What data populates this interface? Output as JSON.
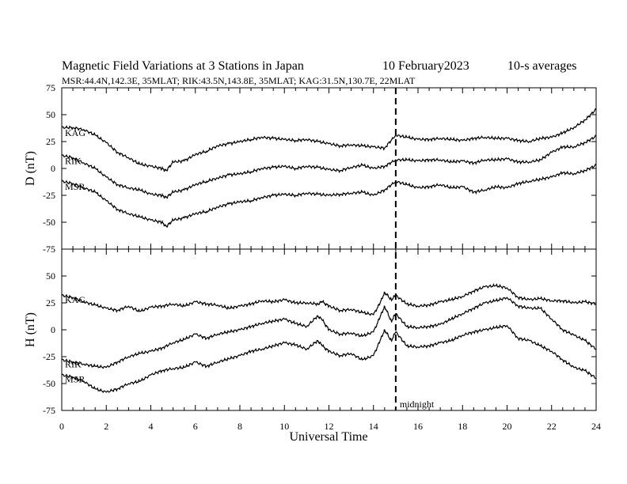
{
  "header": {
    "title": "Magnetic Field Variations at 3 Stations in Japan",
    "date": "10 February2023",
    "averaging": "10-s averages",
    "stations_line": "MSR:44.4N,142.3E, 35MLAT;  RIK:43.5N,143.8E, 35MLAT;  KAG:31.5N,130.7E, 22MLAT"
  },
  "annotation": {
    "midnight_label": "midnight",
    "midnight_hour": 15
  },
  "chart_data": [
    {
      "type": "line",
      "panel": "D",
      "ylabel": "D (nT)",
      "xlabel": "",
      "xlim": [
        0,
        24
      ],
      "ylim": [
        -75,
        75
      ],
      "yticks": [
        75,
        50,
        25,
        0,
        -25,
        -50,
        -75
      ],
      "ytick_labels": [
        "75",
        "50",
        "25",
        "0",
        "-25",
        "-50",
        "-75"
      ],
      "grid": false,
      "series": [
        {
          "name": "KAG",
          "x": [
            0,
            0.5,
            1,
            1.5,
            2,
            2.5,
            3,
            3.5,
            4,
            4.5,
            4.7,
            5,
            5.5,
            6,
            6.5,
            7,
            7.5,
            8,
            8.5,
            9,
            9.5,
            10,
            10.5,
            11,
            11.5,
            12,
            12.5,
            13,
            13.5,
            14,
            14.5,
            15,
            15.5,
            16,
            16.5,
            17,
            17.5,
            18,
            18.5,
            19,
            19.5,
            20,
            20.5,
            21,
            21.5,
            22,
            22.5,
            23,
            23.5,
            24
          ],
          "y": [
            38,
            38,
            36,
            31,
            24,
            15,
            10,
            4,
            2,
            0,
            -2,
            6,
            7,
            13,
            16,
            21,
            23,
            25,
            27,
            29,
            28,
            27,
            26,
            27,
            25,
            23,
            21,
            22,
            21,
            20,
            19,
            31,
            29,
            27,
            27,
            28,
            27,
            26,
            28,
            29,
            28,
            28,
            26,
            25,
            28,
            29,
            33,
            38,
            45,
            55
          ]
        },
        {
          "name": "RIK",
          "x": [
            0,
            0.5,
            1,
            1.5,
            2,
            2.5,
            3,
            3.5,
            4,
            4.5,
            4.7,
            5,
            5.5,
            6,
            6.5,
            7,
            7.5,
            8,
            8.5,
            9,
            9.5,
            10,
            10.5,
            11,
            11.5,
            12,
            12.5,
            13,
            13.5,
            14,
            14.5,
            15,
            15.5,
            16,
            16.5,
            17,
            17.5,
            18,
            18.5,
            19,
            19.5,
            20,
            20.5,
            21,
            21.5,
            22,
            22.5,
            23,
            23.5,
            24
          ],
          "y": [
            12,
            10,
            5,
            0,
            -8,
            -15,
            -18,
            -20,
            -24,
            -25,
            -27,
            -22,
            -20,
            -15,
            -12,
            -9,
            -6,
            -5,
            -3,
            0,
            1,
            2,
            0,
            2,
            1,
            -1,
            -2,
            1,
            3,
            0,
            2,
            8,
            8,
            7,
            8,
            8,
            6,
            7,
            5,
            8,
            8,
            9,
            6,
            6,
            8,
            15,
            20,
            20,
            24,
            30
          ]
        },
        {
          "name": "MSR",
          "x": [
            0,
            0.5,
            1,
            1.5,
            2,
            2.5,
            3,
            3.5,
            4,
            4.5,
            4.7,
            5,
            5.5,
            6,
            6.5,
            7,
            7.5,
            8,
            8.5,
            9,
            9.5,
            10,
            10.5,
            11,
            11.5,
            12,
            12.5,
            13,
            13.5,
            14,
            14.5,
            15,
            15.5,
            16,
            16.5,
            17,
            17.5,
            18,
            18.5,
            19,
            19.5,
            20,
            20.5,
            21,
            21.5,
            22,
            22.5,
            23,
            23.5,
            24
          ],
          "y": [
            -12,
            -14,
            -18,
            -22,
            -30,
            -38,
            -42,
            -45,
            -48,
            -50,
            -54,
            -48,
            -46,
            -42,
            -40,
            -36,
            -33,
            -31,
            -30,
            -27,
            -25,
            -24,
            -25,
            -23,
            -24,
            -25,
            -24,
            -23,
            -22,
            -25,
            -20,
            -12,
            -15,
            -18,
            -17,
            -15,
            -18,
            -17,
            -22,
            -20,
            -17,
            -18,
            -14,
            -12,
            -10,
            -8,
            -4,
            -5,
            -2,
            3
          ]
        }
      ]
    },
    {
      "type": "line",
      "panel": "H",
      "ylabel": "H (nT)",
      "xlabel": "Universal Time",
      "xlim": [
        0,
        24
      ],
      "ylim": [
        -75,
        75
      ],
      "yticks": [
        50,
        25,
        0,
        -25,
        -50,
        -75
      ],
      "ytick_labels": [
        "50",
        "25",
        "0",
        "-25",
        "-50",
        "-75"
      ],
      "xticks": [
        0,
        2,
        4,
        6,
        8,
        10,
        12,
        14,
        16,
        18,
        20,
        22,
        24
      ],
      "xtick_labels": [
        "0",
        "2",
        "4",
        "6",
        "8",
        "10",
        "12",
        "14",
        "16",
        "18",
        "20",
        "22",
        "24"
      ],
      "grid": false,
      "series": [
        {
          "name": "KAG",
          "x": [
            0,
            0.5,
            1,
            1.5,
            2,
            2.5,
            3,
            3.5,
            4,
            4.5,
            5,
            5.5,
            6,
            6.5,
            7,
            7.5,
            8,
            8.5,
            9,
            9.5,
            10,
            10.5,
            11,
            11.5,
            11.7,
            12,
            12.5,
            13,
            13.5,
            14,
            14.3,
            14.5,
            14.8,
            15,
            15.5,
            16,
            16.5,
            17,
            17.5,
            18,
            18.5,
            19,
            19.5,
            20,
            20.5,
            21,
            21.5,
            22,
            22.5,
            23,
            23.5,
            24
          ],
          "y": [
            32,
            30,
            26,
            23,
            20,
            18,
            22,
            17,
            21,
            22,
            24,
            22,
            26,
            24,
            23,
            20,
            22,
            24,
            27,
            26,
            28,
            25,
            25,
            24,
            26,
            22,
            18,
            19,
            16,
            14,
            25,
            35,
            28,
            32,
            24,
            22,
            23,
            26,
            28,
            31,
            36,
            40,
            41,
            39,
            30,
            28,
            29,
            27,
            27,
            25,
            26,
            24
          ]
        },
        {
          "name": "RIK",
          "x": [
            0,
            0.5,
            1,
            1.5,
            2,
            2.5,
            3,
            3.5,
            4,
            4.5,
            5,
            5.5,
            6,
            6.5,
            7,
            7.5,
            8,
            8.5,
            9,
            9.5,
            10,
            10.5,
            11,
            11.5,
            11.7,
            12,
            12.5,
            13,
            13.5,
            14,
            14.3,
            14.5,
            14.8,
            15,
            15.5,
            16,
            16.5,
            17,
            17.5,
            18,
            18.5,
            19,
            19.5,
            20,
            20.5,
            21,
            21.5,
            22,
            22.5,
            23,
            23.5,
            24
          ],
          "y": [
            -28,
            -30,
            -32,
            -34,
            -35,
            -30,
            -25,
            -22,
            -20,
            -17,
            -12,
            -9,
            -4,
            -8,
            -4,
            -2,
            0,
            3,
            6,
            8,
            10,
            6,
            3,
            13,
            9,
            0,
            -4,
            -3,
            -6,
            -2,
            12,
            22,
            8,
            15,
            3,
            2,
            3,
            5,
            10,
            15,
            20,
            25,
            27,
            30,
            22,
            20,
            20,
            10,
            0,
            -5,
            -10,
            -18
          ]
        },
        {
          "name": "MSR",
          "x": [
            0,
            0.5,
            1,
            1.5,
            2,
            2.5,
            3,
            3.5,
            4,
            4.5,
            5,
            5.5,
            6,
            6.5,
            7,
            7.5,
            8,
            8.5,
            9,
            9.5,
            10,
            10.5,
            11,
            11.5,
            11.7,
            12,
            12.5,
            13,
            13.5,
            14,
            14.3,
            14.5,
            14.8,
            15,
            15.5,
            16,
            16.5,
            17,
            17.5,
            18,
            18.5,
            19,
            19.5,
            20,
            20.5,
            21,
            21.5,
            22,
            22.5,
            23,
            23.5,
            24
          ],
          "y": [
            -42,
            -44,
            -48,
            -55,
            -58,
            -55,
            -50,
            -48,
            -42,
            -38,
            -36,
            -35,
            -30,
            -34,
            -30,
            -27,
            -24,
            -20,
            -18,
            -15,
            -12,
            -14,
            -18,
            -10,
            -15,
            -20,
            -24,
            -22,
            -28,
            -24,
            -10,
            0,
            -10,
            -2,
            -15,
            -16,
            -15,
            -12,
            -10,
            -5,
            -2,
            0,
            2,
            4,
            -8,
            -10,
            -15,
            -20,
            -28,
            -35,
            -38,
            -45
          ]
        }
      ]
    }
  ]
}
